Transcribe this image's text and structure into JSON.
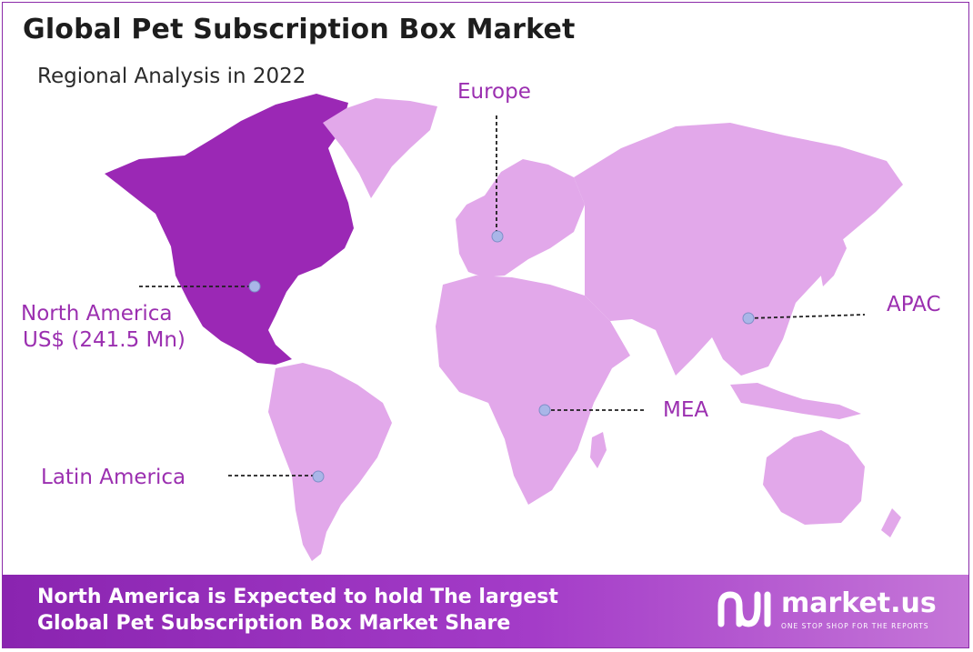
{
  "header": {
    "title": "Global Pet Subscription Box Market",
    "subtitle": "Regional Analysis in 2022"
  },
  "regions": [
    {
      "id": "north-america",
      "label": "North America",
      "value": "US$ (241.5 Mn)",
      "highlighted": true
    },
    {
      "id": "europe",
      "label": "Europe",
      "highlighted": false
    },
    {
      "id": "apac",
      "label": "APAC",
      "highlighted": false
    },
    {
      "id": "mea",
      "label": "MEA",
      "highlighted": false
    },
    {
      "id": "latin-america",
      "label": "Latin America",
      "highlighted": false
    }
  ],
  "footer": {
    "line1": "North America is Expected to hold The largest",
    "line2": "Global Pet Subscription Box Market Share"
  },
  "brand": {
    "name": "market.us",
    "tagline": "ONE STOP SHOP FOR THE REPORTS",
    "logo_icon": "market-us-logo-icon"
  },
  "colors": {
    "highlight_region": "#9b28b5",
    "other_regions": "#e2a8ea",
    "label_text": "#9b2fb0",
    "footer_gradient_start": "#8a24b0",
    "footer_gradient_end": "#c576d8",
    "marker_dot": "#a9b6e8"
  }
}
